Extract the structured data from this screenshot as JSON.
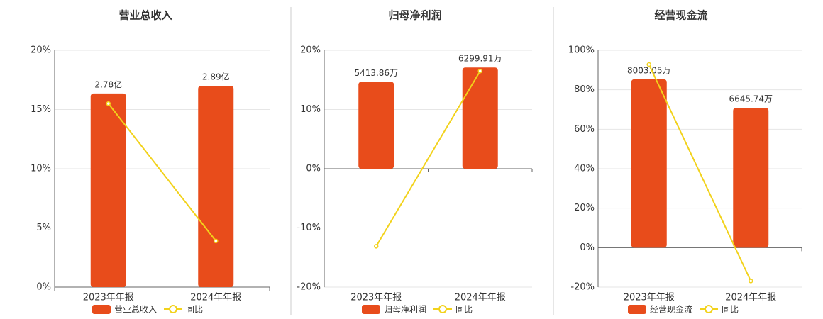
{
  "chart_data": [
    {
      "type": "bar",
      "title": "营业总收入",
      "categories": [
        "2023年年报",
        "2024年年报"
      ],
      "series": [
        {
          "name": "营业总收入",
          "type": "bar",
          "axis": "y2",
          "color": "#e84c1b",
          "values": [
            2.78,
            2.89
          ],
          "value_labels": [
            "2.78亿",
            "2.89亿"
          ]
        },
        {
          "name": "同比",
          "type": "line",
          "color": "#f2d21b",
          "values": [
            15.5,
            3.9
          ]
        }
      ],
      "ylim": [
        0,
        20
      ],
      "yticks": [
        {
          "value": 0,
          "label": "0%"
        },
        {
          "value": 5,
          "label": "5%"
        },
        {
          "value": 10,
          "label": "10%"
        },
        {
          "value": 15,
          "label": "15%"
        },
        {
          "value": 20,
          "label": "20%"
        }
      ],
      "y2lim": [
        0,
        3.4
      ],
      "grid": true
    },
    {
      "type": "bar",
      "title": "归母净利润",
      "categories": [
        "2023年年报",
        "2024年年报"
      ],
      "series": [
        {
          "name": "归母净利润",
          "type": "bar",
          "axis": "y2",
          "color": "#e84c1b",
          "values": [
            5413.86,
            6299.91
          ],
          "value_labels": [
            "5413.86万",
            "6299.91万"
          ]
        },
        {
          "name": "同比",
          "type": "line",
          "color": "#f2d21b",
          "values": [
            -13.1,
            16.5
          ]
        }
      ],
      "ylim": [
        -20,
        20
      ],
      "yticks": [
        {
          "value": -20,
          "label": "-20%"
        },
        {
          "value": -10,
          "label": "-10%"
        },
        {
          "value": 0,
          "label": "0%"
        },
        {
          "value": 10,
          "label": "10%"
        },
        {
          "value": 20,
          "label": "20%"
        }
      ],
      "y2lim": [
        -7370,
        7370
      ],
      "grid": true
    },
    {
      "type": "bar",
      "title": "经营现金流",
      "categories": [
        "2023年年报",
        "2024年年报"
      ],
      "series": [
        {
          "name": "经营现金流",
          "type": "bar",
          "axis": "y2",
          "color": "#e84c1b",
          "values": [
            8003.05,
            6645.74
          ],
          "value_labels": [
            "8003.05万",
            "6645.74万"
          ]
        },
        {
          "name": "同比",
          "type": "line",
          "color": "#f2d21b",
          "values": [
            92.8,
            -16.9
          ]
        }
      ],
      "ylim": [
        -20,
        100
      ],
      "yticks": [
        {
          "value": -20,
          "label": "-20%"
        },
        {
          "value": 0,
          "label": "0%"
        },
        {
          "value": 20,
          "label": "20%"
        },
        {
          "value": 40,
          "label": "40%"
        },
        {
          "value": 60,
          "label": "60%"
        },
        {
          "value": 80,
          "label": "80%"
        },
        {
          "value": 100,
          "label": "100%"
        }
      ],
      "y2lim": [
        -1876,
        9380
      ],
      "grid": true
    }
  ]
}
